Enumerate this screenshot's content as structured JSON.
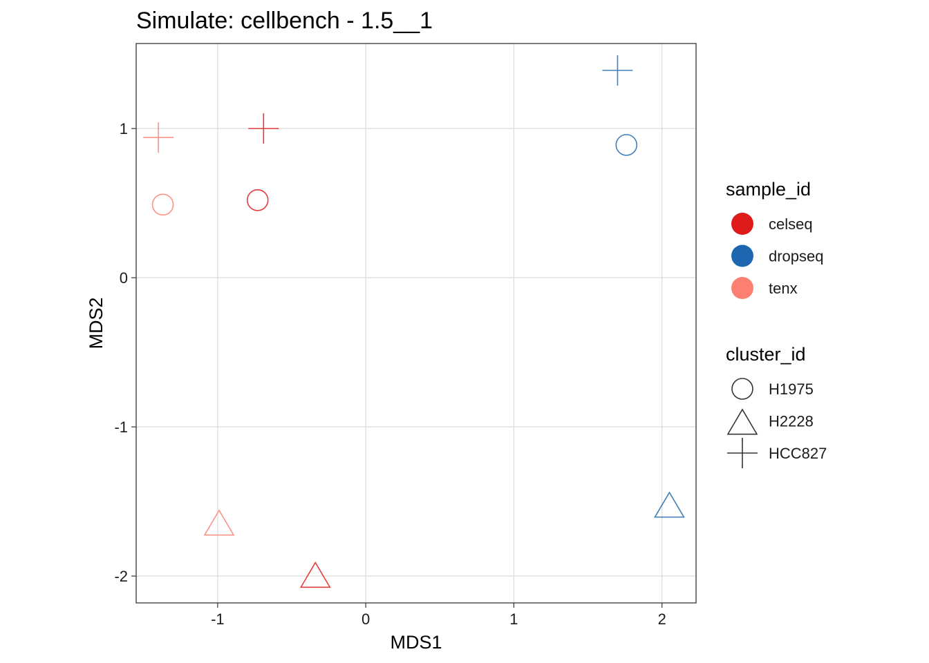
{
  "chart_data": {
    "type": "scatter",
    "title": "Simulate: cellbench - 1.5__1",
    "xlabel": "MDS1",
    "ylabel": "MDS2",
    "xlim": [
      -1.55,
      2.23
    ],
    "ylim": [
      -2.18,
      1.57
    ],
    "x_ticks": [
      -1,
      0,
      1,
      2
    ],
    "y_ticks": [
      -2,
      -1,
      0,
      1
    ],
    "x_tick_labels": [
      "-1",
      "0",
      "1",
      "2"
    ],
    "y_tick_labels": [
      "-2",
      "-1",
      "0",
      "1"
    ],
    "grid": true,
    "legend_placement": "right",
    "color_legend": {
      "title": "sample_id",
      "entries": [
        {
          "label": "celseq",
          "color": "#de1a1a"
        },
        {
          "label": "dropseq",
          "color": "#1f66b0"
        },
        {
          "label": "tenx",
          "color": "#fb8072"
        }
      ]
    },
    "shape_legend": {
      "title": "cluster_id",
      "entries": [
        {
          "label": "H1975",
          "shape": "circle"
        },
        {
          "label": "H2228",
          "shape": "triangle"
        },
        {
          "label": "HCC827",
          "shape": "plus"
        }
      ]
    },
    "points": [
      {
        "sample_id": "celseq",
        "cluster_id": "H1975",
        "x": -0.73,
        "y": 0.52
      },
      {
        "sample_id": "celseq",
        "cluster_id": "H2228",
        "x": -0.34,
        "y": -2.0
      },
      {
        "sample_id": "celseq",
        "cluster_id": "HCC827",
        "x": -0.69,
        "y": 1.0
      },
      {
        "sample_id": "dropseq",
        "cluster_id": "H1975",
        "x": 1.76,
        "y": 0.89
      },
      {
        "sample_id": "dropseq",
        "cluster_id": "H2228",
        "x": 2.05,
        "y": -1.53
      },
      {
        "sample_id": "dropseq",
        "cluster_id": "HCC827",
        "x": 1.7,
        "y": 1.39
      },
      {
        "sample_id": "tenx",
        "cluster_id": "H1975",
        "x": -1.37,
        "y": 0.49
      },
      {
        "sample_id": "tenx",
        "cluster_id": "H2228",
        "x": -0.99,
        "y": -1.65
      },
      {
        "sample_id": "tenx",
        "cluster_id": "HCC827",
        "x": -1.4,
        "y": 0.94
      }
    ]
  }
}
